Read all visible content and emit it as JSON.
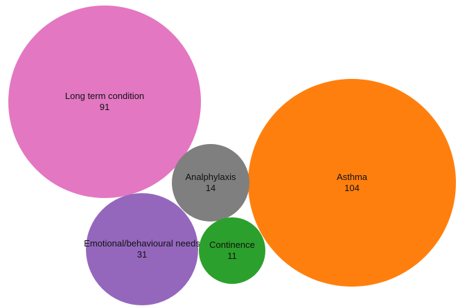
{
  "chart_data": {
    "type": "bubble",
    "items": [
      {
        "label": "Long term condition",
        "value": 91,
        "color": "#e377c2"
      },
      {
        "label": "Asthma",
        "value": 104,
        "color": "#ff7f0e"
      },
      {
        "label": "Analphylaxis",
        "value": 14,
        "color": "#7f7f7f"
      },
      {
        "label": "Emotional/behavioural needs",
        "value": 31,
        "color": "#9467bd"
      },
      {
        "label": "Continence",
        "value": 11,
        "color": "#2ca02c"
      }
    ]
  }
}
